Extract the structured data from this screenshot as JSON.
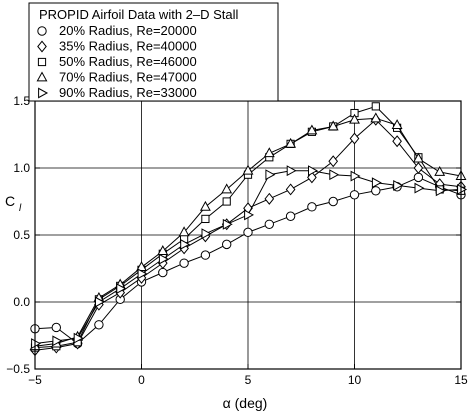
{
  "chart_data": {
    "type": "line",
    "title": "",
    "xlabel": "α (deg)",
    "ylabel": "C",
    "ylabel_sub": "l",
    "xlim": [
      -5,
      15
    ],
    "ylim": [
      -0.5,
      1.5
    ],
    "xticks": [
      -5,
      0,
      5,
      10,
      15
    ],
    "yticks": [
      -0.5,
      0.0,
      0.5,
      1.0,
      1.5
    ],
    "xtick_labels": [
      "−5",
      "0",
      "5",
      "10",
      "15"
    ],
    "ytick_labels": [
      "−0.5",
      "0.0",
      "0.5",
      "1.0",
      "1.5"
    ],
    "grid": true,
    "legend": {
      "title": "PROPID Airfoil Data with 2–D Stall",
      "placement": "top-left"
    },
    "series": [
      {
        "name": "20% Radius, Re=20000",
        "marker": "circle",
        "x": [
          -5,
          -4,
          -3,
          -2,
          -1,
          0,
          1,
          2,
          3,
          4,
          5,
          6,
          7,
          8,
          9,
          10,
          11,
          12,
          13,
          14,
          15
        ],
        "y": [
          -0.2,
          -0.19,
          -0.31,
          -0.17,
          0.02,
          0.15,
          0.22,
          0.29,
          0.35,
          0.43,
          0.52,
          0.58,
          0.64,
          0.71,
          0.75,
          0.8,
          0.83,
          0.86,
          0.93,
          0.86,
          0.8
        ]
      },
      {
        "name": "35% Radius, Re=40000",
        "marker": "diamond",
        "x": [
          -5,
          -4,
          -3,
          -2,
          -1,
          0,
          1,
          2,
          3,
          4,
          5,
          6,
          7,
          8,
          9,
          10,
          11,
          12,
          13,
          14,
          15
        ],
        "y": [
          -0.36,
          -0.34,
          -0.31,
          -0.02,
          0.07,
          0.18,
          0.29,
          0.4,
          0.49,
          0.58,
          0.7,
          0.77,
          0.84,
          0.93,
          1.05,
          1.22,
          1.36,
          1.2,
          1.0,
          0.88,
          0.86
        ]
      },
      {
        "name": "50% Radius, Re=46000",
        "marker": "square",
        "x": [
          -5,
          -4,
          -3,
          -2,
          -1,
          0,
          1,
          2,
          3,
          4,
          5,
          6,
          7,
          8,
          9,
          10,
          11,
          12,
          13,
          14,
          15
        ],
        "y": [
          -0.34,
          -0.33,
          -0.3,
          0.02,
          0.12,
          0.24,
          0.36,
          0.47,
          0.62,
          0.75,
          0.95,
          1.08,
          1.18,
          1.27,
          1.31,
          1.41,
          1.46,
          1.3,
          1.08,
          0.84,
          0.83
        ]
      },
      {
        "name": "70% Radius, Re=47000",
        "marker": "triangle-up",
        "x": [
          -5,
          -4,
          -3,
          -2,
          -1,
          0,
          1,
          2,
          3,
          4,
          5,
          6,
          7,
          8,
          9,
          10,
          11,
          12,
          13,
          14,
          15
        ],
        "y": [
          -0.33,
          -0.31,
          -0.26,
          0.03,
          0.13,
          0.26,
          0.38,
          0.52,
          0.71,
          0.84,
          0.98,
          1.11,
          1.18,
          1.28,
          1.31,
          1.36,
          1.37,
          1.32,
          1.07,
          0.97,
          0.94
        ]
      },
      {
        "name": "90% Radius, Re=33000",
        "marker": "triangle-right",
        "x": [
          -5,
          -4,
          -3,
          -2,
          -1,
          0,
          1,
          2,
          3,
          4,
          5,
          6,
          7,
          8,
          9,
          10,
          11,
          12,
          13,
          14,
          15
        ],
        "y": [
          -0.31,
          -0.29,
          -0.27,
          0.0,
          0.1,
          0.21,
          0.32,
          0.43,
          0.51,
          0.58,
          0.65,
          0.95,
          0.98,
          0.98,
          0.95,
          0.94,
          0.89,
          0.87,
          0.85,
          0.83,
          0.84
        ]
      }
    ]
  }
}
